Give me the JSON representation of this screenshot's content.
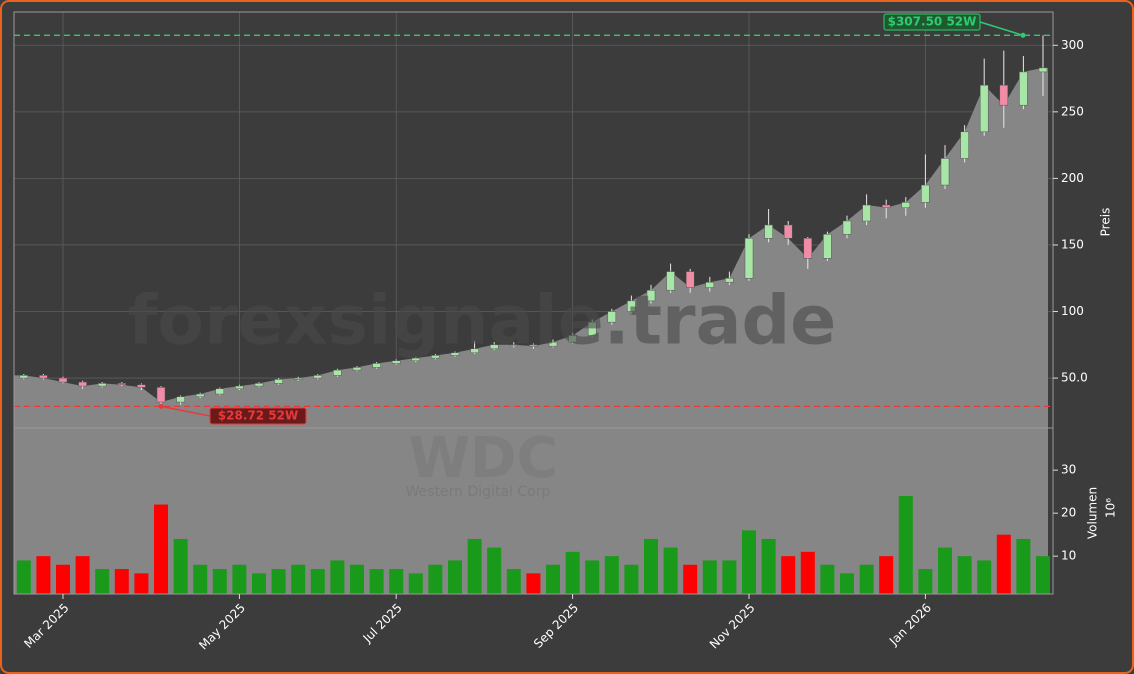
{
  "chart_data": {
    "type": "candlestick",
    "watermark": "forexsignale.trade",
    "symbol": "WDC",
    "company": "Western Digital Corp",
    "ylabel": "Preis",
    "volume_label": "Volumen",
    "volume_offset_label": "10⁶",
    "categories": [
      null,
      null,
      "Mar 2025",
      null,
      null,
      null,
      null,
      null,
      null,
      null,
      null,
      "May 2025",
      null,
      null,
      null,
      null,
      null,
      null,
      null,
      "Jul 2025",
      null,
      null,
      null,
      null,
      null,
      null,
      null,
      null,
      "Sep 2025",
      null,
      null,
      null,
      null,
      null,
      null,
      null,
      null,
      "Nov 2025",
      null,
      null,
      null,
      null,
      null,
      null,
      null,
      null,
      "Jan 2026",
      null,
      null,
      null,
      null,
      null,
      null
    ],
    "open": [
      50,
      52,
      50,
      47,
      44,
      46,
      45,
      43,
      32,
      36,
      38,
      42,
      44,
      46,
      49,
      50,
      52,
      56,
      58,
      61,
      63,
      65,
      67,
      69,
      72,
      75,
      75,
      74,
      77,
      82,
      92,
      100,
      108,
      116,
      130,
      118,
      122,
      125,
      155,
      165,
      155,
      140,
      158,
      168,
      180,
      178,
      182,
      195,
      215,
      235,
      270,
      255,
      280
    ],
    "high": [
      53,
      53,
      51,
      48,
      47,
      47,
      46,
      44,
      37,
      39,
      43,
      45,
      47,
      50,
      51,
      53,
      57,
      59,
      62,
      64,
      66,
      68,
      70,
      78,
      77,
      77,
      76,
      79,
      84,
      94,
      102,
      112,
      120,
      136,
      132,
      126,
      130,
      158,
      177,
      168,
      156,
      160,
      172,
      188,
      184,
      186,
      218,
      225,
      240,
      290,
      296,
      292,
      307.5
    ],
    "low": [
      49,
      49,
      46,
      42,
      43,
      44,
      41,
      28.72,
      30,
      35,
      37,
      41,
      43,
      45,
      48,
      49,
      51,
      55,
      57,
      60,
      62,
      64,
      66,
      68,
      71,
      73,
      72,
      73,
      76,
      81,
      90,
      98,
      106,
      114,
      114,
      115,
      120,
      123,
      152,
      150,
      132,
      138,
      155,
      165,
      170,
      172,
      178,
      192,
      212,
      232,
      238,
      252,
      262
    ],
    "close": [
      52,
      50,
      47,
      44,
      46,
      45,
      43,
      32,
      36,
      38,
      42,
      44,
      46,
      49,
      50,
      52,
      56,
      58,
      61,
      63,
      65,
      67,
      69,
      72,
      75,
      75,
      74,
      77,
      82,
      92,
      100,
      108,
      116,
      130,
      118,
      122,
      125,
      155,
      165,
      155,
      140,
      158,
      168,
      180,
      178,
      182,
      195,
      215,
      235,
      270,
      255,
      280,
      283
    ],
    "volume": [
      9,
      10,
      8,
      10,
      7,
      7,
      6,
      22,
      14,
      8,
      7,
      8,
      6,
      7,
      8,
      7,
      9,
      8,
      7,
      7,
      6,
      8,
      9,
      14,
      12,
      7,
      6,
      8,
      11,
      9,
      10,
      8,
      14,
      12,
      8,
      9,
      9,
      16,
      14,
      10,
      11,
      8,
      6,
      8,
      10,
      24,
      7,
      12,
      10,
      9,
      15,
      14,
      10
    ],
    "up_color": "#a8e6a8",
    "down_color": "#f08ca6",
    "volume_up_color": "#1a9a1a",
    "volume_down_color": "#ff0000",
    "area_color": "#868686",
    "ylim": [
      12.5,
      325
    ],
    "yticks": [
      {
        "value": 50,
        "label": "50.0"
      },
      100,
      150,
      200,
      250,
      300
    ],
    "volume_ylim": [
      1.2,
      39.8
    ],
    "volume_yticks": [
      10,
      20,
      30
    ],
    "grid": true,
    "annotations": [
      {
        "label": "$307.50 52W",
        "value": 307.5,
        "color": "#2ecc71"
      },
      {
        "label": "$28.72 52W",
        "value": 28.72,
        "color": "#e83a3a"
      }
    ]
  }
}
